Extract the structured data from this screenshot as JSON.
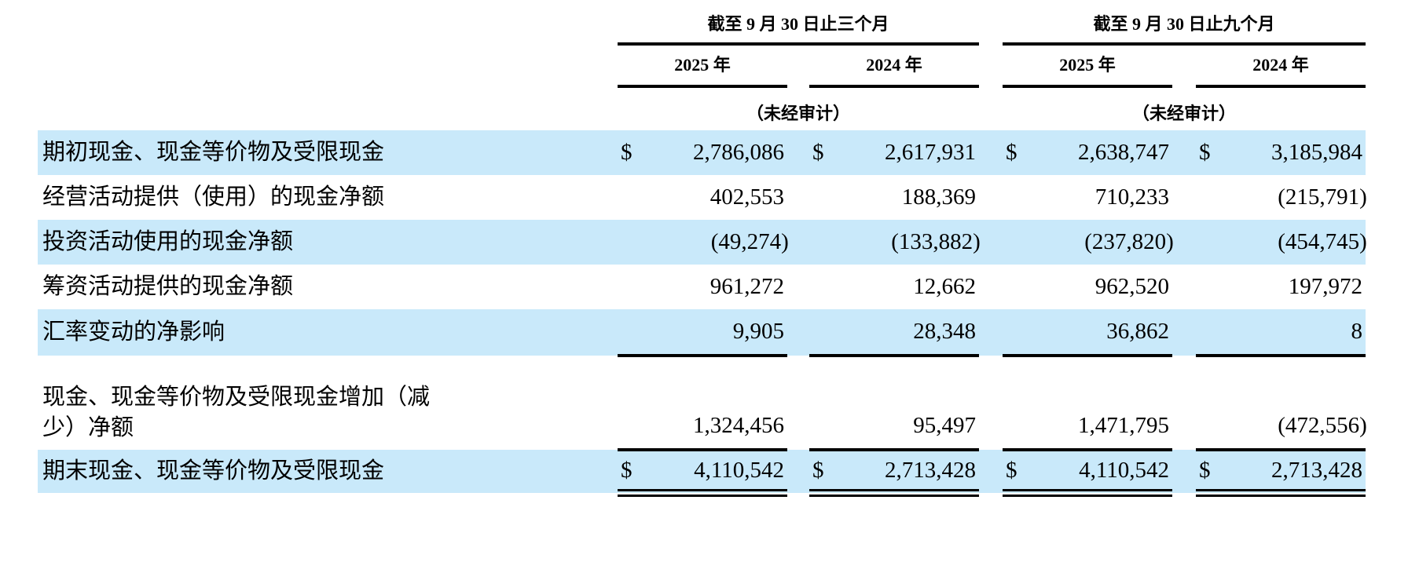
{
  "page": {
    "currency_symbol": "$",
    "header": {
      "groups": [
        {
          "title": "截至 9 月 30 日止三个月",
          "years": [
            "2025 年",
            "2024 年"
          ],
          "audit_note": "（未经审计）"
        },
        {
          "title": "截至 9 月 30 日止九个月",
          "years": [
            "2025 年",
            "2024 年"
          ],
          "audit_note": "（未经审计）"
        }
      ]
    },
    "rows": [
      {
        "label": "期初现金、现金等价物及受限现金",
        "values": [
          "2,786,086",
          "2,617,931",
          "2,638,747",
          "3,185,984"
        ]
      },
      {
        "label": "经营活动提供（使用）的现金净额",
        "values": [
          "402,553",
          "188,369",
          "710,233",
          "(215,791)"
        ]
      },
      {
        "label": "投资活动使用的现金净额",
        "values": [
          "(49,274)",
          "(133,882)",
          "(237,820)",
          "(454,745)"
        ]
      },
      {
        "label": "筹资活动提供的现金净额",
        "values": [
          "961,272",
          "12,662",
          "962,520",
          "197,972"
        ]
      },
      {
        "label": "汇率变动的净影响",
        "values": [
          "9,905",
          "28,348",
          "36,862",
          "8"
        ]
      },
      {
        "label": "现金、现金等价物及受限现金增加（减\n少）净额",
        "values": [
          "1,324,456",
          "95,497",
          "1,471,795",
          "(472,556)"
        ]
      },
      {
        "label": "期末现金、现金等价物及受限现金",
        "values": [
          "4,110,542",
          "2,713,428",
          "4,110,542",
          "2,713,428"
        ]
      }
    ],
    "colors": {
      "row_highlight": "#C9E9FA",
      "rule": "#000000",
      "text": "#000000"
    }
  }
}
